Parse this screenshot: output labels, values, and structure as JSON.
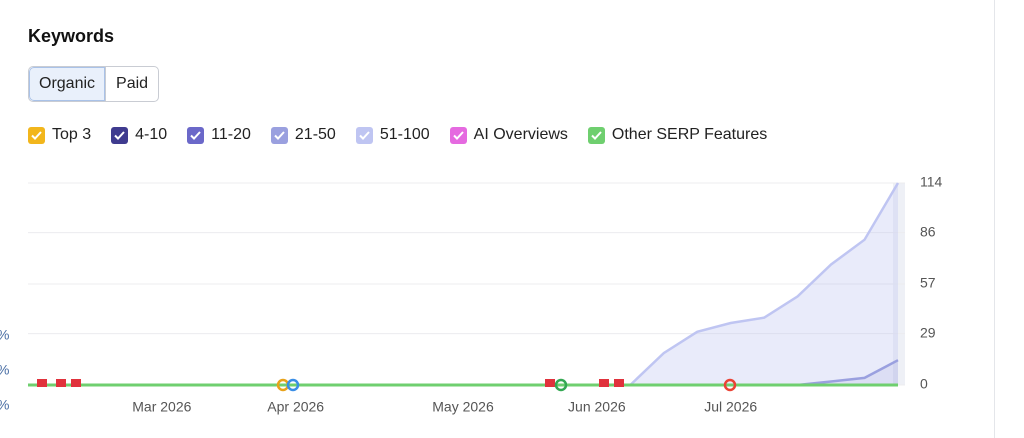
{
  "header": {
    "title": "Keywords"
  },
  "tabs": [
    "Organic",
    "Paid"
  ],
  "edge_fragments": [
    "%",
    "%",
    "%"
  ],
  "chart_data": {
    "type": "area",
    "categories": [
      null,
      null,
      null,
      null,
      "Mar 2026",
      null,
      null,
      null,
      "Apr 2026",
      null,
      null,
      null,
      null,
      "May 2026",
      null,
      null,
      null,
      "Jun 2026",
      null,
      null,
      null,
      "Jul 2026",
      null,
      null,
      null,
      null,
      null
    ],
    "series": [
      {
        "name": "Top 3",
        "color": "#f2b61c",
        "kind": "area",
        "values": [
          0,
          0,
          0,
          0,
          0,
          0,
          0,
          0,
          0,
          0,
          0,
          0,
          0,
          0,
          0,
          0,
          0,
          0,
          0,
          0,
          0,
          0,
          0,
          0,
          0,
          0,
          0
        ]
      },
      {
        "name": "4-10",
        "color": "#3f3b8f",
        "kind": "area",
        "values": [
          0,
          0,
          0,
          0,
          0,
          0,
          0,
          0,
          0,
          0,
          0,
          0,
          0,
          0,
          0,
          0,
          0,
          0,
          0,
          0,
          0,
          0,
          0,
          0,
          0,
          0,
          0
        ]
      },
      {
        "name": "11-20",
        "color": "#6b68c9",
        "kind": "area",
        "values": [
          0,
          0,
          0,
          0,
          0,
          0,
          0,
          0,
          0,
          0,
          0,
          0,
          0,
          0,
          0,
          0,
          0,
          0,
          0,
          0,
          0,
          0,
          0,
          0,
          0,
          0,
          0
        ]
      },
      {
        "name": "21-50",
        "color": "#9aa0df",
        "kind": "area",
        "values": [
          0,
          0,
          0,
          0,
          0,
          0,
          0,
          0,
          0,
          0,
          0,
          0,
          0,
          0,
          0,
          0,
          0,
          0,
          0,
          0,
          0,
          0,
          0,
          0,
          2,
          4,
          14
        ]
      },
      {
        "name": "51-100",
        "color": "#bfc5f2",
        "kind": "area",
        "values": [
          0,
          0,
          0,
          0,
          0,
          0,
          0,
          0,
          0,
          0,
          0,
          0,
          0,
          0,
          0,
          0,
          0,
          0,
          0,
          18,
          30,
          35,
          38,
          50,
          66,
          78,
          100
        ]
      },
      {
        "name": "AI Overviews",
        "color": "#e56ae0",
        "kind": "line",
        "values": [
          0,
          0,
          0,
          0,
          0,
          0,
          0,
          0,
          0,
          0,
          0,
          0,
          0,
          0,
          0,
          0,
          0,
          0,
          0,
          0,
          0,
          0,
          0,
          0,
          0,
          0,
          0
        ]
      },
      {
        "name": "Other SERP Features",
        "color": "#6fcf6f",
        "kind": "line",
        "values": [
          0,
          0,
          0,
          0,
          0,
          0,
          0,
          0,
          0,
          0,
          0,
          0,
          0,
          0,
          0,
          0,
          0,
          0,
          0,
          0,
          0,
          0,
          0,
          0,
          0,
          0,
          0
        ]
      }
    ],
    "ylim": [
      0,
      114
    ],
    "yticks": [
      0,
      29,
      57,
      86,
      114
    ],
    "grid": true
  }
}
